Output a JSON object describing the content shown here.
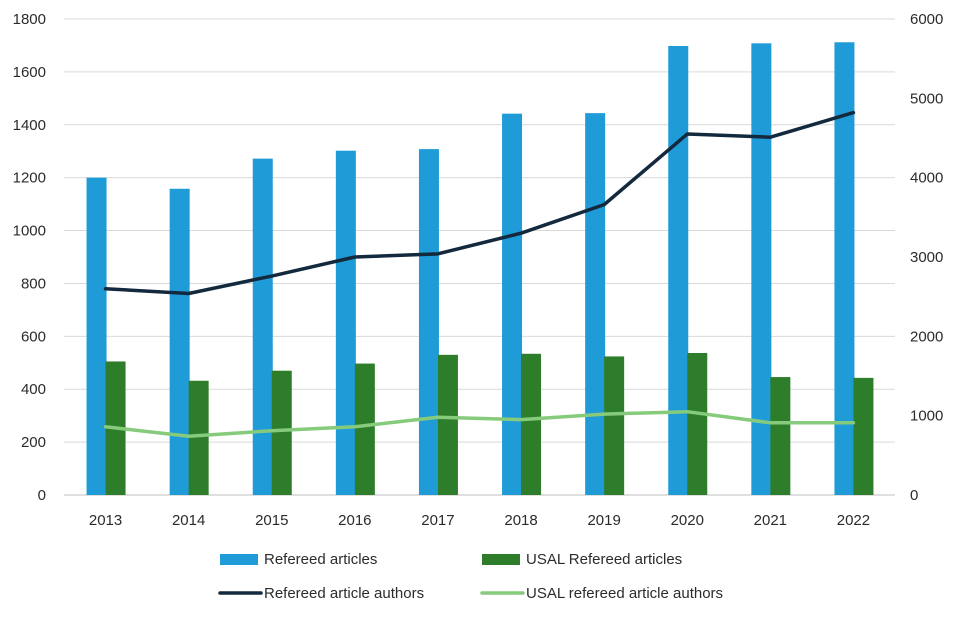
{
  "chart_data": {
    "type": "bar",
    "categories": [
      "2013",
      "2014",
      "2015",
      "2016",
      "2017",
      "2018",
      "2019",
      "2020",
      "2021",
      "2022"
    ],
    "series": [
      {
        "name": "Refereed articles",
        "kind": "bar",
        "axis": "left",
        "color": "#1f9bd8",
        "values": [
          1200,
          1158,
          1272,
          1302,
          1308,
          1442,
          1444,
          1698,
          1708,
          1712
        ]
      },
      {
        "name": "USAL Refereed articles",
        "kind": "bar",
        "axis": "left",
        "color": "#2e7d2a",
        "values": [
          505,
          432,
          470,
          497,
          530,
          534,
          524,
          537,
          446,
          443
        ]
      },
      {
        "name": "Refereed article authors",
        "kind": "line",
        "axis": "right",
        "color": "#13293d",
        "values": [
          2600,
          2540,
          2760,
          3000,
          3040,
          3300,
          3660,
          4550,
          4510,
          4820
        ]
      },
      {
        "name": "USAL refereed article authors",
        "kind": "line",
        "axis": "right",
        "color": "#86ca7c",
        "values": [
          860,
          740,
          810,
          860,
          980,
          950,
          1020,
          1050,
          910,
          910
        ]
      }
    ],
    "y_left": {
      "min": 0,
      "max": 1800,
      "ticks": [
        "0",
        "200",
        "400",
        "600",
        "800",
        "1000",
        "1200",
        "1400",
        "1600",
        "1800"
      ]
    },
    "y_right": {
      "min": 0,
      "max": 6000,
      "ticks": [
        "0",
        "1000",
        "2000",
        "3000",
        "4000",
        "5000",
        "6000"
      ]
    },
    "grid": true,
    "legend_position": "bottom"
  }
}
